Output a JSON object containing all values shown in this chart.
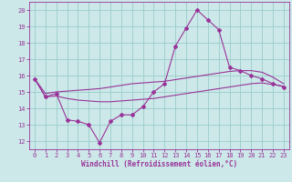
{
  "xlabel": "Windchill (Refroidissement éolien,°C)",
  "bg_color": "#cce8e8",
  "grid_color": "#99cccc",
  "line_color": "#993399",
  "xlim": [
    -0.5,
    23.5
  ],
  "ylim": [
    11.5,
    20.5
  ],
  "yticks": [
    12,
    13,
    14,
    15,
    16,
    17,
    18,
    19,
    20
  ],
  "xticks": [
    0,
    1,
    2,
    3,
    4,
    5,
    6,
    7,
    8,
    9,
    10,
    11,
    12,
    13,
    14,
    15,
    16,
    17,
    18,
    19,
    20,
    21,
    22,
    23
  ],
  "curve1_x": [
    0,
    1,
    2,
    3,
    4,
    5,
    6,
    7,
    8,
    9,
    10,
    11,
    12,
    13,
    14,
    15,
    16,
    17,
    18,
    19,
    20,
    21,
    22,
    23
  ],
  "curve1_y": [
    15.8,
    14.7,
    14.9,
    13.3,
    13.2,
    13.0,
    11.9,
    13.2,
    13.6,
    13.6,
    14.1,
    15.0,
    15.5,
    17.8,
    18.9,
    20.0,
    19.4,
    18.8,
    16.5,
    16.3,
    16.0,
    15.8,
    15.5,
    15.3
  ],
  "curve2_x": [
    0,
    1,
    2,
    3,
    4,
    5,
    6,
    7,
    8,
    9,
    10,
    11,
    12,
    13,
    14,
    15,
    16,
    17,
    18,
    19,
    20,
    21,
    22,
    23
  ],
  "curve2_y": [
    15.8,
    14.9,
    15.0,
    15.05,
    15.1,
    15.15,
    15.2,
    15.3,
    15.4,
    15.5,
    15.55,
    15.6,
    15.65,
    15.75,
    15.85,
    15.95,
    16.05,
    16.15,
    16.25,
    16.3,
    16.3,
    16.2,
    15.9,
    15.5
  ],
  "curve3_x": [
    0,
    1,
    2,
    3,
    4,
    5,
    6,
    7,
    8,
    9,
    10,
    11,
    12,
    13,
    14,
    15,
    16,
    17,
    18,
    19,
    20,
    21,
    22,
    23
  ],
  "curve3_y": [
    15.8,
    14.7,
    14.75,
    14.6,
    14.5,
    14.45,
    14.4,
    14.4,
    14.45,
    14.5,
    14.55,
    14.6,
    14.7,
    14.8,
    14.9,
    15.0,
    15.1,
    15.2,
    15.3,
    15.4,
    15.5,
    15.55,
    15.45,
    15.35
  ]
}
